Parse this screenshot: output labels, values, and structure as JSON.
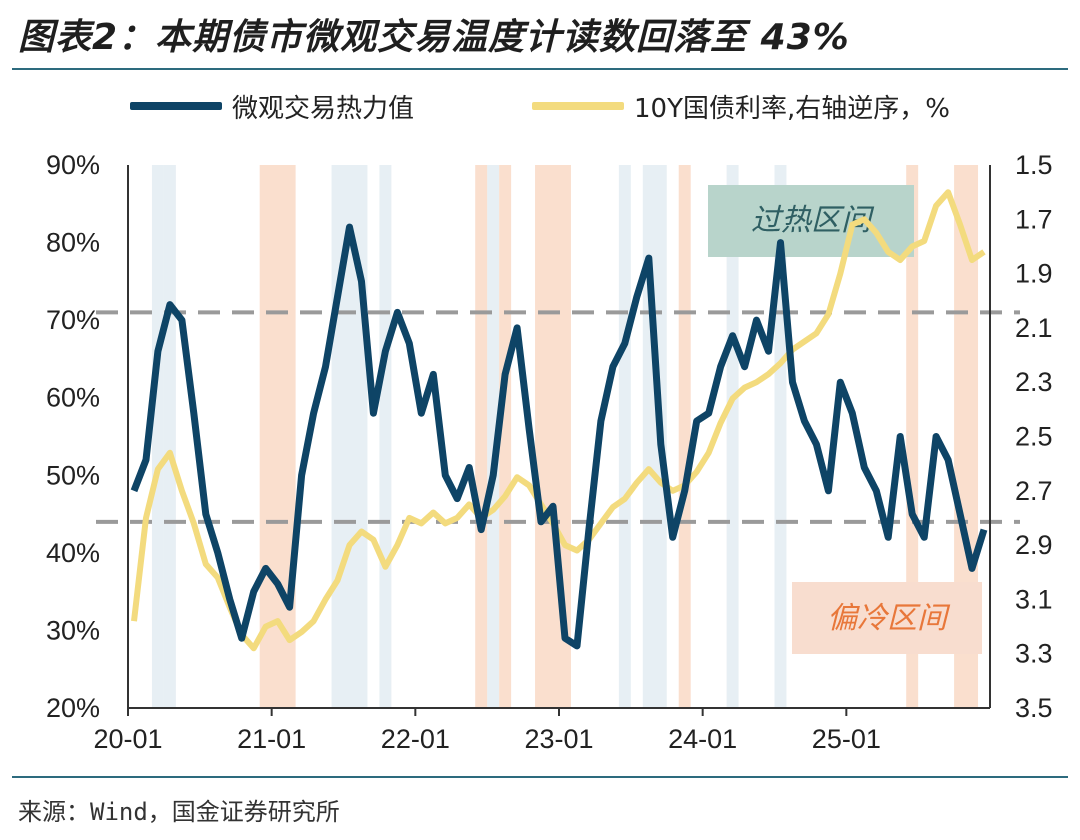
{
  "header": {
    "title": "图表2：本期债市微观交易温度计读数回落至 43%"
  },
  "legend": {
    "heat_label": "微观交易热力值",
    "yield_label": "10Y国债利率,右轴逆序，%"
  },
  "source": "来源：Wind，国金证券研究所",
  "colors": {
    "heat": "#0e4466",
    "yield": "#f3db7e",
    "shade_blue": "#dfe9f0",
    "shade_orange": "#f9d9c5",
    "hot_box": "#b8d4cb",
    "cold_box": "#f8ddcf",
    "dash": "#9a9a9a"
  },
  "chart_data": {
    "type": "line",
    "title": "本期债市微观交易温度计读数回落至 43%",
    "x_ticks": [
      "20-01",
      "21-01",
      "22-01",
      "23-01",
      "24-01",
      "25-01"
    ],
    "x_range": [
      "2020-01",
      "2025-12"
    ],
    "y_left": {
      "ticks": [
        "20%",
        "30%",
        "40%",
        "50%",
        "60%",
        "70%",
        "80%",
        "90%"
      ],
      "range": [
        20,
        90
      ],
      "unit": "%"
    },
    "y_right": {
      "ticks": [
        "1.5",
        "1.7",
        "1.9",
        "2.1",
        "2.3",
        "2.5",
        "2.7",
        "2.9",
        "3.1",
        "3.3",
        "3.5"
      ],
      "range": [
        1.5,
        3.5
      ],
      "reversed": true
    },
    "threshold_lines": [
      {
        "label": "过热区间",
        "value": 71
      },
      {
        "label": "偏冷区间",
        "value": 44
      }
    ],
    "annotations": {
      "hot_zone": "过热区间",
      "cold_zone": "偏冷区间"
    },
    "series": [
      {
        "name": "微观交易热力值",
        "axis": "left",
        "x": [
          "2020-01",
          "2020-02",
          "2020-03",
          "2020-04",
          "2020-05",
          "2020-06",
          "2020-07",
          "2020-08",
          "2020-09",
          "2020-10",
          "2020-11",
          "2020-12",
          "2021-01",
          "2021-02",
          "2021-03",
          "2021-04",
          "2021-05",
          "2021-06",
          "2021-07",
          "2021-08",
          "2021-09",
          "2021-10",
          "2021-11",
          "2021-12",
          "2022-01",
          "2022-02",
          "2022-03",
          "2022-04",
          "2022-05",
          "2022-06",
          "2022-07",
          "2022-08",
          "2022-09",
          "2022-10",
          "2022-11",
          "2022-12",
          "2023-01",
          "2023-02",
          "2023-03",
          "2023-04",
          "2023-05",
          "2023-06",
          "2023-07",
          "2023-08",
          "2023-09",
          "2023-10",
          "2023-11",
          "2023-12",
          "2024-01",
          "2024-02",
          "2024-03",
          "2024-04",
          "2024-05",
          "2024-06",
          "2024-07",
          "2024-08",
          "2024-09",
          "2024-10",
          "2024-11",
          "2024-12",
          "2025-01",
          "2025-02",
          "2025-03",
          "2025-04",
          "2025-05",
          "2025-06",
          "2025-07",
          "2025-08",
          "2025-09",
          "2025-10",
          "2025-11",
          "2025-12"
        ],
        "values": [
          48,
          52,
          66,
          72,
          70,
          58,
          45,
          40,
          34,
          29,
          35,
          38,
          36,
          33,
          50,
          58,
          64,
          73,
          82,
          75,
          58,
          66,
          71,
          67,
          58,
          63,
          50,
          47,
          51,
          43,
          50,
          63,
          69,
          56,
          44,
          46,
          29,
          28,
          43,
          57,
          64,
          67,
          73,
          78,
          54,
          42,
          48,
          57,
          58,
          64,
          68,
          64,
          70,
          66,
          80,
          62,
          57,
          54,
          48,
          62,
          58,
          51,
          48,
          42,
          55,
          45,
          42,
          55,
          52,
          45,
          38,
          43
        ]
      },
      {
        "name": "10Y国债利率,右轴逆序，%",
        "axis": "right",
        "x": [
          "2020-01",
          "2020-02",
          "2020-03",
          "2020-04",
          "2020-05",
          "2020-06",
          "2020-07",
          "2020-08",
          "2020-09",
          "2020-10",
          "2020-11",
          "2020-12",
          "2021-01",
          "2021-02",
          "2021-03",
          "2021-04",
          "2021-05",
          "2021-06",
          "2021-07",
          "2021-08",
          "2021-09",
          "2021-10",
          "2021-11",
          "2021-12",
          "2022-01",
          "2022-02",
          "2022-03",
          "2022-04",
          "2022-05",
          "2022-06",
          "2022-07",
          "2022-08",
          "2022-09",
          "2022-10",
          "2022-11",
          "2022-12",
          "2023-01",
          "2023-02",
          "2023-03",
          "2023-04",
          "2023-05",
          "2023-06",
          "2023-07",
          "2023-08",
          "2023-09",
          "2023-10",
          "2023-11",
          "2023-12",
          "2024-01",
          "2024-02",
          "2024-03",
          "2024-04",
          "2024-05",
          "2024-06",
          "2024-07",
          "2024-08",
          "2024-09",
          "2024-10",
          "2024-11",
          "2024-12",
          "2025-01",
          "2025-02",
          "2025-03",
          "2025-04",
          "2025-05",
          "2025-06",
          "2025-07",
          "2025-08",
          "2025-09",
          "2025-10",
          "2025-11",
          "2025-12"
        ],
        "values": [
          3.18,
          2.8,
          2.62,
          2.56,
          2.7,
          2.82,
          2.97,
          3.02,
          3.13,
          3.23,
          3.28,
          3.2,
          3.18,
          3.25,
          3.22,
          3.18,
          3.1,
          3.03,
          2.9,
          2.85,
          2.88,
          2.98,
          2.9,
          2.8,
          2.82,
          2.78,
          2.82,
          2.8,
          2.75,
          2.8,
          2.77,
          2.72,
          2.65,
          2.68,
          2.75,
          2.82,
          2.9,
          2.92,
          2.88,
          2.82,
          2.76,
          2.73,
          2.67,
          2.62,
          2.67,
          2.7,
          2.68,
          2.63,
          2.56,
          2.45,
          2.36,
          2.32,
          2.3,
          2.27,
          2.23,
          2.18,
          2.15,
          2.12,
          2.05,
          1.9,
          1.72,
          1.7,
          1.75,
          1.82,
          1.85,
          1.8,
          1.78,
          1.65,
          1.6,
          1.72,
          1.85,
          1.82
        ]
      }
    ],
    "shaded_periods_blue": [
      [
        "2020-03",
        "2020-03"
      ],
      [
        "2020-04",
        "2020-04"
      ],
      [
        "2021-06",
        "2021-08"
      ],
      [
        "2021-10",
        "2021-10"
      ],
      [
        "2022-07",
        "2022-07"
      ],
      [
        "2023-06",
        "2023-06"
      ],
      [
        "2023-08",
        "2023-09"
      ],
      [
        "2024-03",
        "2024-03"
      ],
      [
        "2024-07",
        "2024-07"
      ]
    ],
    "shaded_periods_orange": [
      [
        "2020-12",
        "2021-02"
      ],
      [
        "2022-06",
        "2022-06"
      ],
      [
        "2022-08",
        "2022-08"
      ],
      [
        "2022-11",
        "2023-01"
      ],
      [
        "2023-11",
        "2023-11"
      ],
      [
        "2025-06",
        "2025-06"
      ],
      [
        "2025-10",
        "2025-11"
      ]
    ]
  }
}
